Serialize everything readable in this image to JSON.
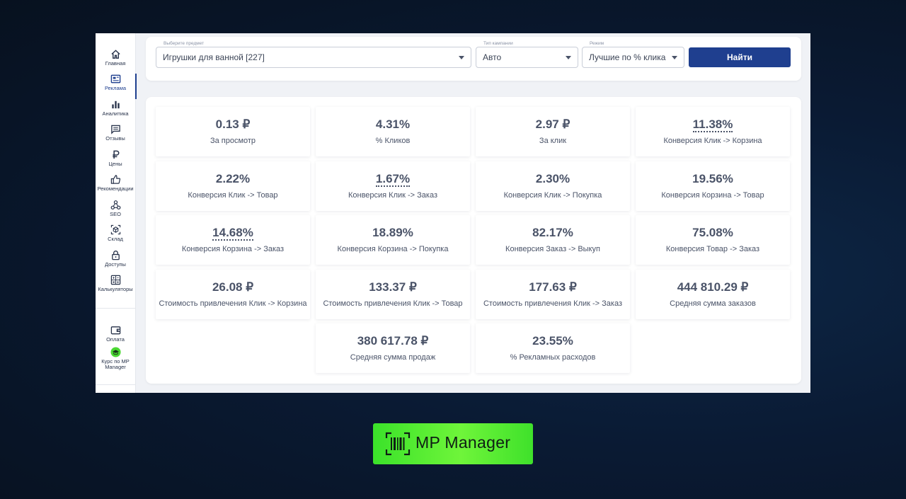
{
  "sidebar": {
    "items": [
      {
        "label": "Главная",
        "icon": "home-icon"
      },
      {
        "label": "Реклама",
        "icon": "ads-icon",
        "active": true
      },
      {
        "label": "Аналитика",
        "icon": "bar-chart-icon"
      },
      {
        "label": "Отзывы",
        "icon": "chat-icon"
      },
      {
        "label": "Цены",
        "icon": "ruble-icon"
      },
      {
        "label": "Рекомендации",
        "icon": "thumbs-up-icon"
      },
      {
        "label": "SEO",
        "icon": "network-icon"
      },
      {
        "label": "Склад",
        "icon": "box-icon"
      },
      {
        "label": "Доступы",
        "icon": "lock-icon"
      },
      {
        "label": "Калькуляторы",
        "icon": "calculator-icon"
      }
    ],
    "bottom": [
      {
        "label": "Оплата",
        "icon": "wallet-icon"
      },
      {
        "label": "Курс по MP Manager",
        "icon": "graduation-cap-icon"
      }
    ]
  },
  "search": {
    "subject_label": "Выберите предмет",
    "subject_value": "Игрушки для ванной [227]",
    "campaign_label": "Тип кампании",
    "campaign_value": "Авто",
    "mode_label": "Режим",
    "mode_value": "Лучшие по % клика",
    "find_button": "Найти"
  },
  "metrics": [
    {
      "value": "0.13 ₽",
      "caption": "За просмотр"
    },
    {
      "value": "4.31%",
      "caption": "% Кликов"
    },
    {
      "value": "2.97 ₽",
      "caption": "За клик"
    },
    {
      "value": "11.38%",
      "caption": "Конверсия Клик -> Корзина",
      "dotted": true
    },
    {
      "value": "2.22%",
      "caption": "Конверсия Клик -> Товар"
    },
    {
      "value": "1.67%",
      "caption": "Конверсия Клик -> Заказ",
      "dotted": true
    },
    {
      "value": "2.30%",
      "caption": "Конверсия Клик -> Покупка"
    },
    {
      "value": "19.56%",
      "caption": "Конверсия Корзина -> Товар"
    },
    {
      "value": "14.68%",
      "caption": "Конверсия Корзина -> Заказ",
      "dotted": true
    },
    {
      "value": "18.89%",
      "caption": "Конверсия Корзина -> Покупка"
    },
    {
      "value": "82.17%",
      "caption": "Конверсия Заказ -> Выкуп"
    },
    {
      "value": "75.08%",
      "caption": "Конверсия Товар -> Заказ"
    },
    {
      "value": "26.08 ₽",
      "caption": "Стоимость привлечения Клик -> Корзина"
    },
    {
      "value": "133.37 ₽",
      "caption": "Стоимость привлечения Клик -> Товар"
    },
    {
      "value": "177.63 ₽",
      "caption": "Стоимость привлечения Клик -> Заказ"
    },
    {
      "value": "444 810.29 ₽",
      "caption": "Средняя сумма заказов"
    },
    {
      "value": "380 617.78 ₽",
      "caption": "Средняя сумма продаж"
    },
    {
      "value": "23.55%",
      "caption": "% Рекламных расходов"
    }
  ],
  "brand": {
    "name": "MP Manager",
    "icon": "barcode-scan-icon"
  },
  "colors": {
    "accent": "#1f3f8f",
    "brand_green": "#5af03a",
    "text": "#4a5368",
    "background": "#0a1a33"
  }
}
